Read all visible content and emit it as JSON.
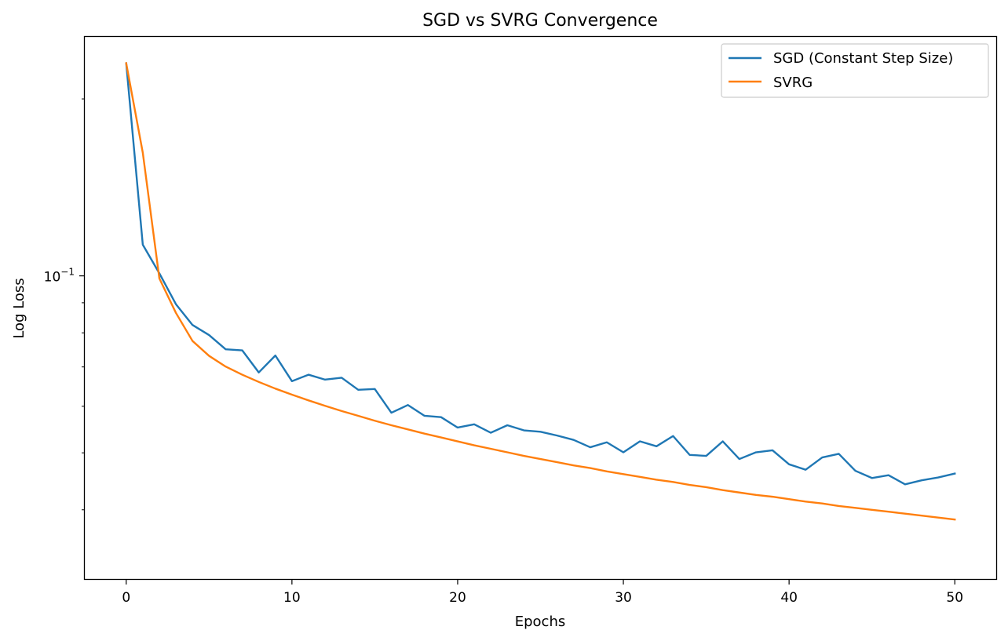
{
  "chart_data": {
    "type": "line",
    "title": "SGD vs SVRG Convergence",
    "xlabel": "Epochs",
    "ylabel": "Log Loss",
    "yscale": "log",
    "xlim": [
      -2.5,
      52.5
    ],
    "ylim": [
      0.0305,
      0.255
    ],
    "xticks": [
      0,
      10,
      20,
      30,
      40,
      50
    ],
    "xtick_labels": [
      "0",
      "10",
      "20",
      "30",
      "40",
      "50"
    ],
    "yticks_major": [
      {
        "value": 0.1,
        "base": "10",
        "exp": "−1"
      }
    ],
    "yticks_minor": [
      0.04,
      0.05,
      0.06,
      0.07,
      0.08,
      0.09,
      0.2
    ],
    "grid": false,
    "legend": {
      "placement": "top-right"
    },
    "x": [
      0,
      1,
      2,
      3,
      4,
      5,
      6,
      7,
      8,
      9,
      10,
      11,
      12,
      13,
      14,
      15,
      16,
      17,
      18,
      19,
      20,
      21,
      22,
      23,
      24,
      25,
      26,
      27,
      28,
      29,
      30,
      31,
      32,
      33,
      34,
      35,
      36,
      37,
      38,
      39,
      40,
      41,
      42,
      43,
      44,
      45,
      46,
      47,
      48,
      49,
      50
    ],
    "series": [
      {
        "name": "SGD (Constant Step Size)",
        "color": "#1f77b4",
        "values": [
          0.23,
          0.113,
          0.101,
          0.0895,
          0.0825,
          0.0793,
          0.075,
          0.0747,
          0.0685,
          0.0732,
          0.0662,
          0.0679,
          0.0666,
          0.0671,
          0.064,
          0.0642,
          0.0585,
          0.0603,
          0.0578,
          0.0575,
          0.0552,
          0.0559,
          0.0541,
          0.0557,
          0.0546,
          0.0543,
          0.0535,
          0.0526,
          0.0511,
          0.0521,
          0.0501,
          0.0523,
          0.0513,
          0.0534,
          0.0496,
          0.0494,
          0.0523,
          0.0488,
          0.0501,
          0.0505,
          0.0478,
          0.0468,
          0.0491,
          0.0498,
          0.0466,
          0.0453,
          0.0458,
          0.0442,
          0.0449,
          0.0454,
          0.0461
        ]
      },
      {
        "name": "SVRG",
        "color": "#ff7f0e",
        "values": [
          0.23,
          0.162,
          0.099,
          0.0865,
          0.0775,
          0.0731,
          0.0701,
          0.0679,
          0.066,
          0.0643,
          0.0628,
          0.0614,
          0.0601,
          0.0589,
          0.0578,
          0.0567,
          0.0557,
          0.0548,
          0.0539,
          0.0531,
          0.0523,
          0.0515,
          0.0508,
          0.0501,
          0.0494,
          0.0488,
          0.0482,
          0.0476,
          0.0471,
          0.0465,
          0.046,
          0.0455,
          0.045,
          0.0446,
          0.0441,
          0.0437,
          0.0432,
          0.0428,
          0.0424,
          0.0421,
          0.0417,
          0.0413,
          0.041,
          0.0406,
          0.0403,
          0.04,
          0.0397,
          0.0394,
          0.0391,
          0.0388,
          0.0385
        ]
      }
    ]
  }
}
